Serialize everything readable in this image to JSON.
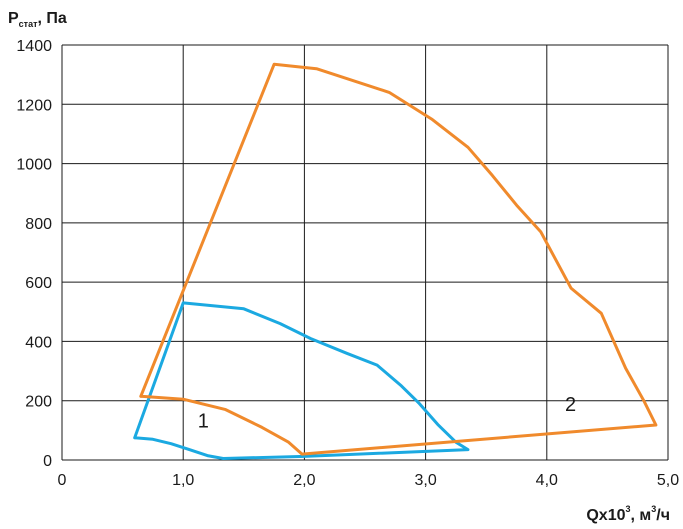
{
  "chart_data": {
    "type": "line",
    "ylabel": {
      "main": "P",
      "sub": "стат",
      "rest": ", Па"
    },
    "xlabel": {
      "main": "Qx10",
      "sup": "3",
      "rest": ", м",
      "sup2": "3",
      "tail": "/ч"
    },
    "xlim": [
      0,
      5
    ],
    "ylim": [
      0,
      1400
    ],
    "x_ticks": [
      "0",
      "1,0",
      "2,0",
      "3,0",
      "4,0",
      "5,0"
    ],
    "y_ticks": [
      "0",
      "200",
      "400",
      "600",
      "800",
      "1000",
      "1200",
      "1400"
    ],
    "grid": true,
    "series": [
      {
        "name": "1",
        "color": "#1ba9e1",
        "points": [
          [
            0.6,
            75
          ],
          [
            0.75,
            70
          ],
          [
            0.9,
            55
          ],
          [
            1.05,
            35
          ],
          [
            1.2,
            15
          ],
          [
            1.33,
            5
          ],
          [
            2.0,
            12
          ],
          [
            3.35,
            35
          ],
          [
            3.25,
            60
          ],
          [
            3.1,
            120
          ],
          [
            2.95,
            190
          ],
          [
            2.8,
            250
          ],
          [
            2.6,
            320
          ],
          [
            2.35,
            360
          ],
          [
            2.05,
            410
          ],
          [
            1.8,
            460
          ],
          [
            1.5,
            510
          ],
          [
            1.0,
            530
          ],
          [
            0.6,
            75
          ]
        ]
      },
      {
        "name": "2",
        "color": "#f08a2c",
        "points": [
          [
            0.65,
            215
          ],
          [
            1.0,
            205
          ],
          [
            1.35,
            170
          ],
          [
            1.65,
            110
          ],
          [
            1.87,
            60
          ],
          [
            1.98,
            20
          ],
          [
            4.9,
            118
          ],
          [
            4.8,
            200
          ],
          [
            4.65,
            310
          ],
          [
            4.45,
            495
          ],
          [
            4.2,
            580
          ],
          [
            3.95,
            770
          ],
          [
            3.75,
            860
          ],
          [
            3.55,
            960
          ],
          [
            3.35,
            1055
          ],
          [
            3.05,
            1150
          ],
          [
            2.7,
            1240
          ],
          [
            2.1,
            1320
          ],
          [
            1.75,
            1335
          ],
          [
            0.65,
            215
          ]
        ]
      }
    ],
    "annotations": [
      {
        "text": "1",
        "x": 1.12,
        "y": 110
      },
      {
        "text": "2",
        "x": 4.15,
        "y": 165
      }
    ]
  }
}
